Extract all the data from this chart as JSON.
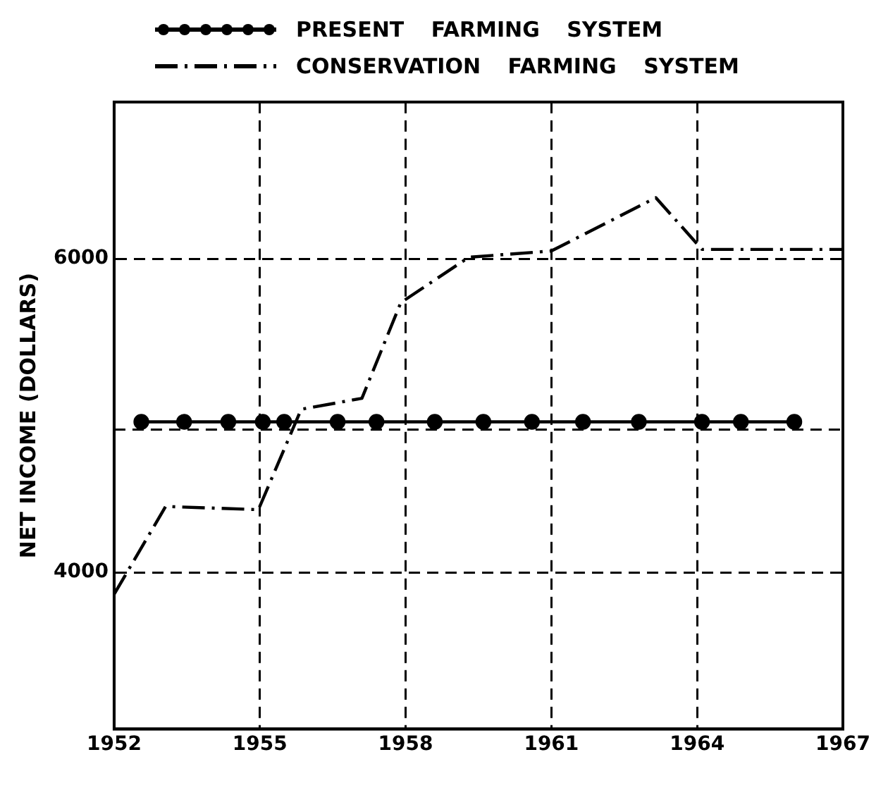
{
  "chart_data": {
    "type": "line",
    "ylabel": "NET INCOME (DOLLARS)",
    "xlim": [
      1952,
      1967
    ],
    "xticks": [
      1952,
      1955,
      1958,
      1961,
      1964,
      1967
    ],
    "ylim": [
      3000,
      7000
    ],
    "yticks": [
      4000,
      6000
    ],
    "grid": true,
    "legend": "top",
    "ref_lines": [
      {
        "axis": "y",
        "value": 4910,
        "line_style": "dashed"
      }
    ],
    "series": [
      {
        "name": "PRESENT FARMING SYSTEM",
        "color": "#000000",
        "marker": "circle",
        "line_style": "solid",
        "x": [
          1952.56,
          1953.44,
          1954.35,
          1955.06,
          1955.5,
          1956.6,
          1957.4,
          1958.6,
          1959.6,
          1960.6,
          1961.65,
          1962.8,
          1964.1,
          1964.9,
          1966.0
        ],
        "values": [
          4960,
          4960,
          4960,
          4960,
          4960,
          4960,
          4960,
          4960,
          4960,
          4960,
          4960,
          4960,
          4960,
          4960,
          4960
        ]
      },
      {
        "name": "CONSERVATION FARMING SYSTEM",
        "color": "#000000",
        "marker": "none",
        "line_style": "dashed",
        "x": [
          1952,
          1953.06,
          1954.97,
          1955.85,
          1957.1,
          1957.9,
          1959.3,
          1961.0,
          1963.15,
          1964.1,
          1967
        ],
        "values": [
          3860,
          4420,
          4400,
          5040,
          5110,
          5720,
          6010,
          6050,
          6390,
          6060,
          6060
        ]
      }
    ]
  }
}
